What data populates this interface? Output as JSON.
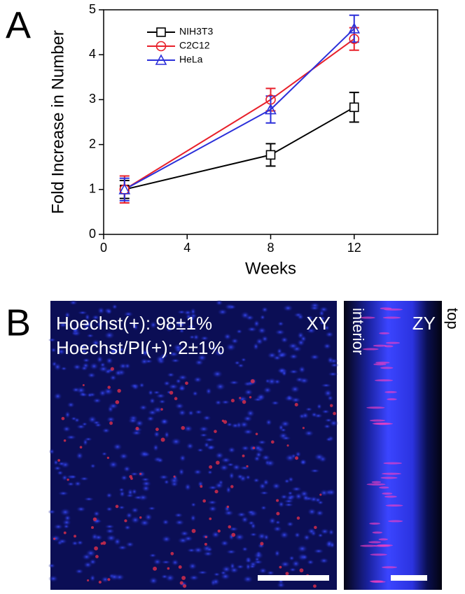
{
  "panels": {
    "a_label": "A",
    "b_label": "B",
    "xy_image": {
      "line1": "Hoechst(+): 98±1%",
      "line2": "Hoechst/PI(+): 2±1%",
      "corner": "XY"
    },
    "zy_image": {
      "corner": "ZY",
      "left_side": "interior",
      "right_side": "top"
    }
  },
  "chart_data": {
    "type": "line",
    "xlabel": "Weeks",
    "ylabel": "Fold Increase in Number",
    "x": [
      1,
      8,
      12
    ],
    "xlim": [
      0,
      16
    ],
    "xticks": [
      0,
      4,
      8,
      12
    ],
    "ylim": [
      0,
      5
    ],
    "yticks": [
      0,
      1,
      2,
      3,
      4,
      5
    ],
    "legend": "upper left",
    "series": [
      {
        "name": "NIH3T3",
        "color": "#000000",
        "marker": "square",
        "values": [
          1.0,
          1.77,
          2.83
        ],
        "errors": [
          0.2,
          0.25,
          0.33
        ]
      },
      {
        "name": "C2C12",
        "color": "#e8202a",
        "marker": "circle",
        "values": [
          1.0,
          3.0,
          4.35
        ],
        "errors": [
          0.3,
          0.25,
          0.25
        ]
      },
      {
        "name": "HeLa",
        "color": "#2b2fd9",
        "marker": "triangle",
        "values": [
          1.0,
          2.78,
          4.58
        ],
        "errors": [
          0.25,
          0.3,
          0.3
        ]
      }
    ]
  }
}
